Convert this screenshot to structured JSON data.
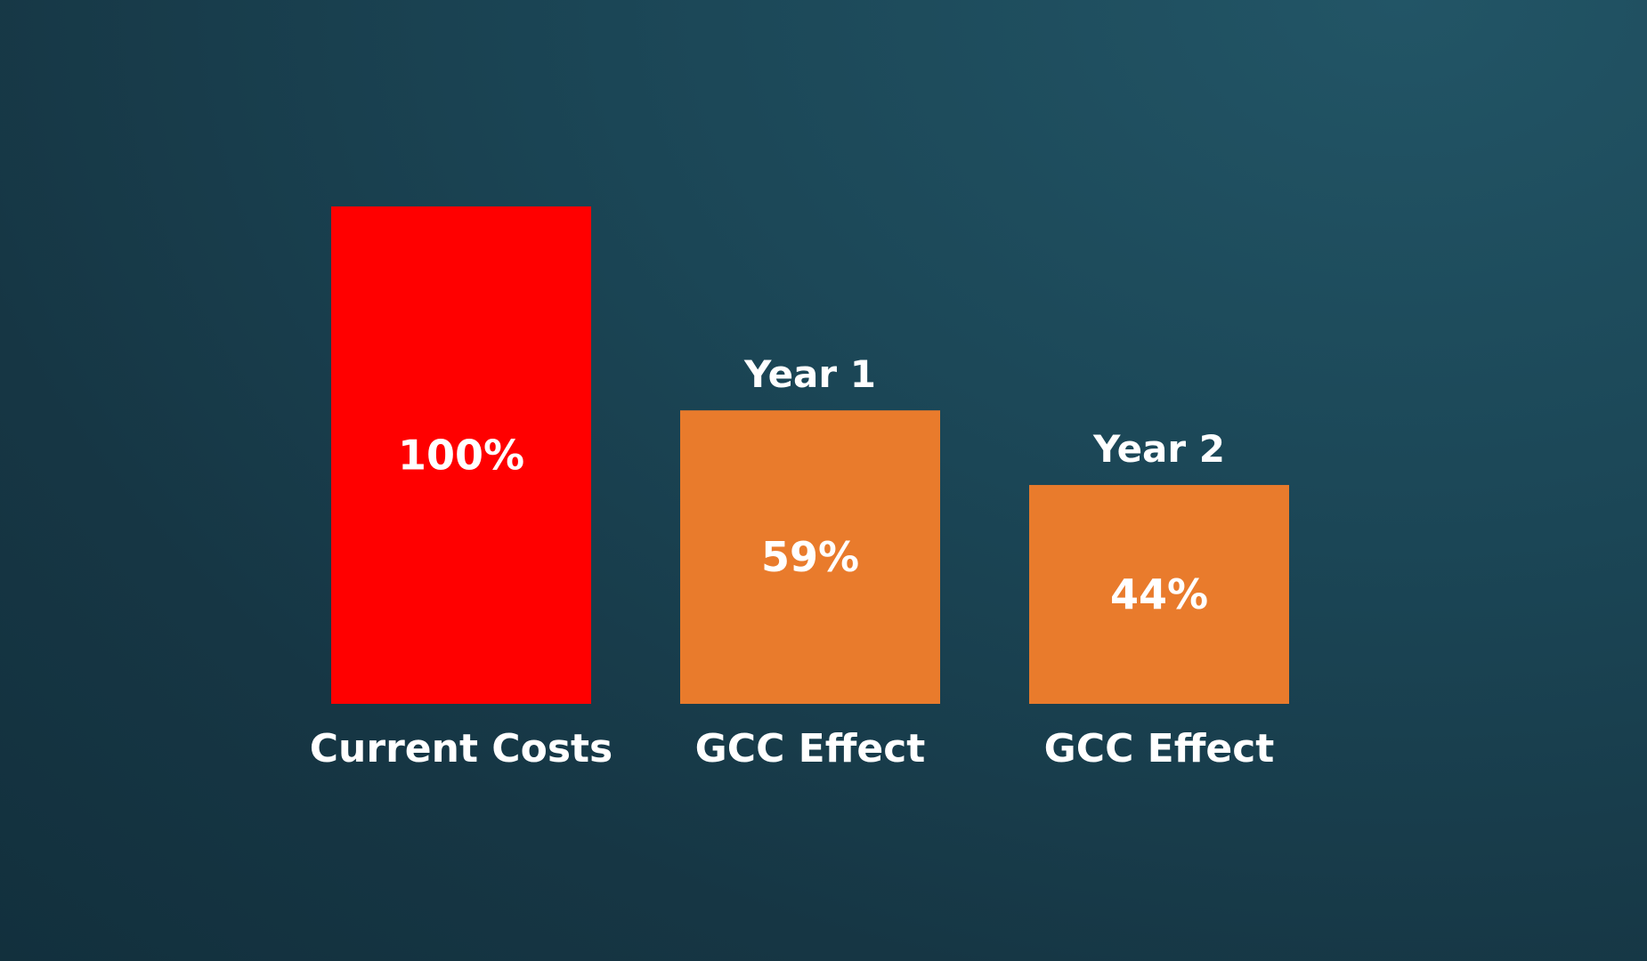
{
  "chart_data": {
    "type": "bar",
    "categories": [
      "Current Costs",
      "GCC Effect",
      "GCC Effect"
    ],
    "top_labels": [
      "",
      "Year 1",
      "Year 2"
    ],
    "values": [
      100,
      59,
      44
    ],
    "value_labels": [
      "100%",
      "59%",
      "44%"
    ],
    "colors": [
      "#ff0000",
      "#e97b2c",
      "#e97b2c"
    ],
    "title": "",
    "xlabel": "",
    "ylabel": "",
    "ylim": [
      0,
      100
    ],
    "grid": false,
    "legend": "none"
  },
  "background": {
    "colors": [
      "#225566",
      "#12303d"
    ]
  }
}
